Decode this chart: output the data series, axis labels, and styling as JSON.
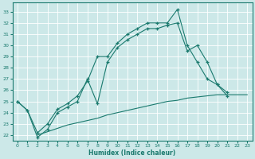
{
  "xlabel": "Humidex (Indice chaleur)",
  "background_color": "#cce8e8",
  "line_color": "#1a7a6e",
  "xlim": [
    -0.5,
    23.5
  ],
  "ylim": [
    21.5,
    33.8
  ],
  "yticks": [
    22,
    23,
    24,
    25,
    26,
    27,
    28,
    29,
    30,
    31,
    32,
    33
  ],
  "xticks": [
    0,
    1,
    2,
    3,
    4,
    5,
    6,
    7,
    8,
    9,
    10,
    11,
    12,
    13,
    14,
    15,
    16,
    17,
    18,
    19,
    20,
    21,
    22,
    23
  ],
  "line1_x": [
    0,
    1,
    2,
    3,
    4,
    5,
    6,
    7,
    8,
    9,
    10,
    11,
    12,
    13,
    14,
    15,
    16,
    17,
    18,
    19,
    20,
    21
  ],
  "line1_y": [
    25.0,
    24.2,
    22.2,
    23.0,
    24.3,
    24.8,
    25.5,
    26.8,
    29.0,
    29.0,
    30.2,
    31.0,
    31.5,
    32.0,
    32.0,
    32.0,
    33.2,
    30.0,
    28.5,
    27.0,
    26.5,
    25.5
  ],
  "line2_x": [
    0,
    1,
    2,
    3,
    4,
    5,
    6,
    7,
    8,
    9,
    10,
    11,
    12,
    13,
    14,
    15,
    16,
    17,
    18,
    19,
    20,
    21
  ],
  "line2_y": [
    25.0,
    24.2,
    21.8,
    22.5,
    24.0,
    24.5,
    25.0,
    27.0,
    24.8,
    28.5,
    29.8,
    30.5,
    31.0,
    31.5,
    31.5,
    31.8,
    32.0,
    29.5,
    30.0,
    28.5,
    26.5,
    25.8
  ],
  "line3_x": [
    2,
    3,
    4,
    5,
    6,
    7,
    8,
    9,
    10,
    11,
    12,
    13,
    14,
    15,
    16,
    17,
    18,
    19,
    20,
    21,
    22,
    23
  ],
  "line3_y": [
    22.0,
    22.3,
    22.6,
    22.9,
    23.1,
    23.3,
    23.5,
    23.8,
    24.0,
    24.2,
    24.4,
    24.6,
    24.8,
    25.0,
    25.1,
    25.3,
    25.4,
    25.5,
    25.6,
    25.6,
    25.6,
    25.6
  ]
}
